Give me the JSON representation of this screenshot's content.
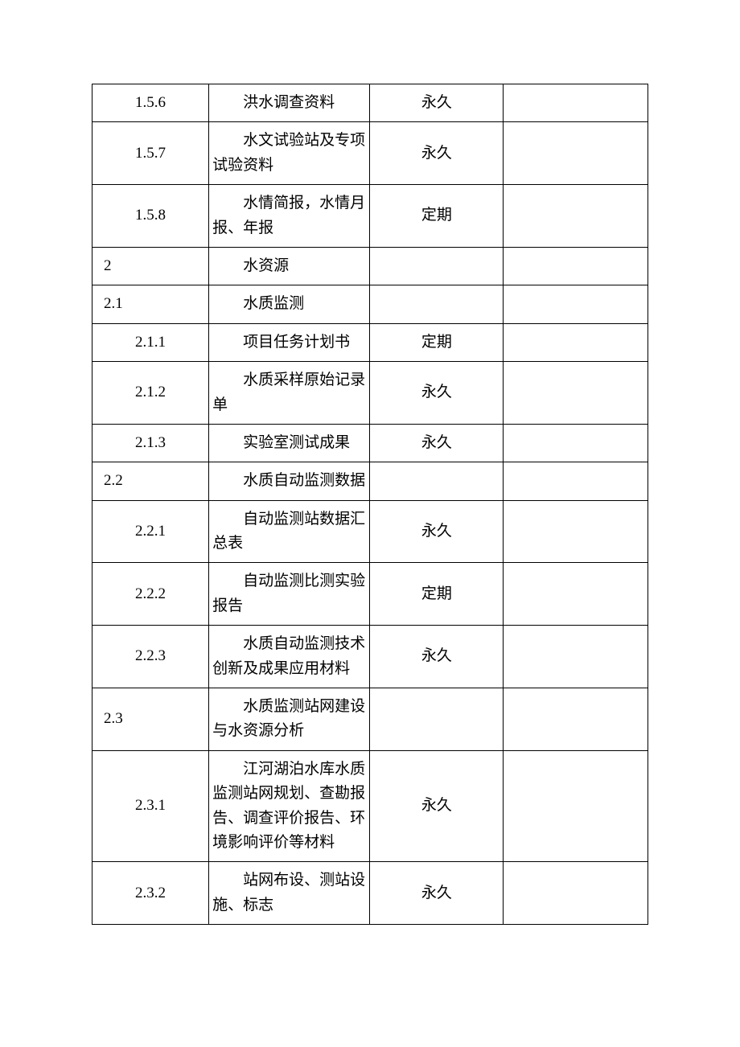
{
  "table": {
    "border_color": "#000000",
    "background_color": "#ffffff",
    "font_family": "SimSun",
    "cell_fontsize": 19,
    "columns": [
      {
        "key": "code",
        "width_pct": 21,
        "align": "center"
      },
      {
        "key": "desc",
        "width_pct": 29,
        "align": "left",
        "text_indent_em": 2
      },
      {
        "key": "period",
        "width_pct": 24,
        "align": "center"
      },
      {
        "key": "remark",
        "width_pct": 26,
        "align": "left"
      }
    ],
    "rows": [
      {
        "code": "1.5.6",
        "code_align": "center",
        "desc": "洪水调查资料",
        "period": "永久",
        "remark": ""
      },
      {
        "code": "1.5.7",
        "code_align": "center",
        "desc": "水文试验站及专项试验资料",
        "period": "永久",
        "remark": ""
      },
      {
        "code": "1.5.8",
        "code_align": "center",
        "desc": "水情简报，水情月报、年报",
        "period": "定期",
        "remark": ""
      },
      {
        "code": "2",
        "code_align": "left",
        "desc": "水资源",
        "period": "",
        "remark": ""
      },
      {
        "code": "2.1",
        "code_align": "left",
        "desc": "水质监测",
        "period": "",
        "remark": ""
      },
      {
        "code": "2.1.1",
        "code_align": "center",
        "desc": "项目任务计划书",
        "period": "定期",
        "remark": ""
      },
      {
        "code": "2.1.2",
        "code_align": "center",
        "desc": "水质采样原始记录单",
        "period": "永久",
        "remark": ""
      },
      {
        "code": "2.1.3",
        "code_align": "center",
        "desc": "实验室测试成果",
        "period": "永久",
        "remark": ""
      },
      {
        "code": "2.2",
        "code_align": "left",
        "desc": "水质自动监测数据",
        "period": "",
        "remark": ""
      },
      {
        "code": "2.2.1",
        "code_align": "center",
        "desc": "自动监测站数据汇总表",
        "period": "永久",
        "remark": ""
      },
      {
        "code": "2.2.2",
        "code_align": "center",
        "desc": "自动监测比测实验报告",
        "period": "定期",
        "remark": ""
      },
      {
        "code": "2.2.3",
        "code_align": "center",
        "desc": "水质自动监测技术创新及成果应用材料",
        "period": "永久",
        "remark": ""
      },
      {
        "code": "2.3",
        "code_align": "left",
        "desc": "水质监测站网建设与水资源分析",
        "period": "",
        "remark": ""
      },
      {
        "code": "2.3.1",
        "code_align": "center",
        "desc": "江河湖泊水库水质监测站网规划、查勘报告、调查评价报告、环境影响评价等材料",
        "period": "永久",
        "remark": ""
      },
      {
        "code": "2.3.2",
        "code_align": "center",
        "desc": "站网布设、测站设施、标志",
        "period": "永久",
        "remark": ""
      }
    ]
  }
}
